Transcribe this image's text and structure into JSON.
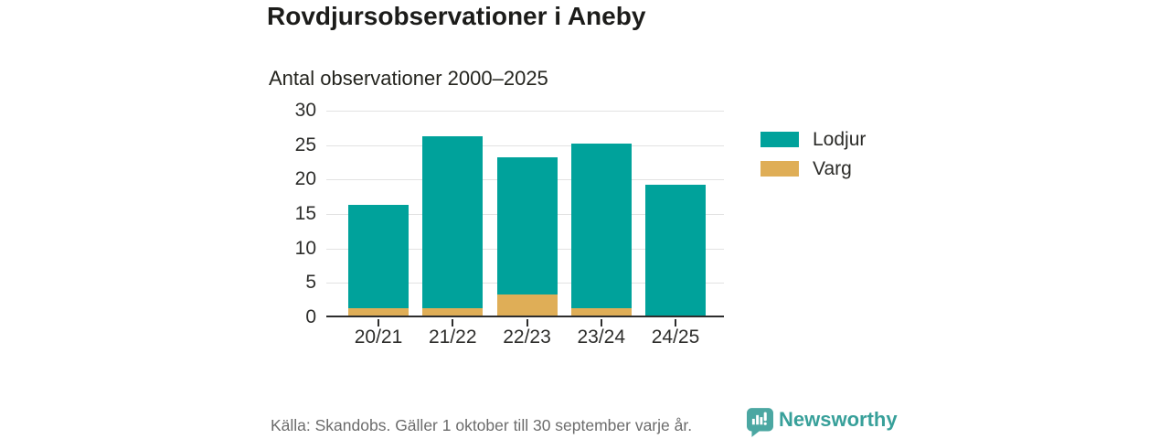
{
  "header": {
    "title": "Rovdjursobservationer i Aneby",
    "subtitle": "Antal observationer 2000–2025"
  },
  "chart_data": {
    "type": "bar",
    "stacked": true,
    "title": "Rovdjursobservationer i Aneby",
    "subtitle": "Antal observationer 2000–2025",
    "categories": [
      "20/21",
      "21/22",
      "22/23",
      "23/24",
      "24/25"
    ],
    "series": [
      {
        "name": "Lodjur",
        "color": "#00a29b",
        "values": [
          15,
          25,
          20,
          24,
          19
        ]
      },
      {
        "name": "Varg",
        "color": "#dfae57",
        "values": [
          1,
          1,
          3,
          1,
          0
        ]
      }
    ],
    "stack_order_bottom_to_top": [
      "Varg",
      "Lodjur"
    ],
    "totals": [
      16,
      26,
      23,
      25,
      19
    ],
    "xlabel": "",
    "ylabel": "",
    "ylim": [
      0,
      30
    ],
    "yticks": [
      0,
      5,
      10,
      15,
      20,
      25,
      30
    ],
    "grid": true,
    "legend_position": "right"
  },
  "legend": {
    "items": [
      {
        "label": "Lodjur",
        "color": "#00a29b"
      },
      {
        "label": "Varg",
        "color": "#dfae57"
      }
    ]
  },
  "footer": {
    "source": "Källa: Skandobs. Gäller 1 oktober till 30 september varje år.",
    "brand": "Newsworthy"
  },
  "colors": {
    "lodjur": "#00a29b",
    "varg": "#dfae57",
    "gridline": "#e2e2e2",
    "axis": "#2d2d2d",
    "text": "#2e2e2c",
    "muted_text": "#6c6c6c",
    "brand_teal": "#38a09a",
    "logo_teal": "#4ba7a2"
  }
}
